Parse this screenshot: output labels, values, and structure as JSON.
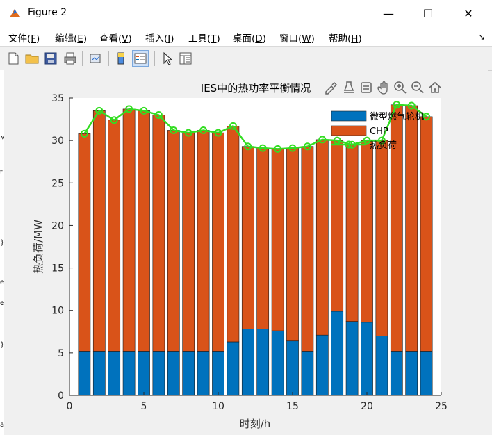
{
  "window": {
    "title": "Figure 2",
    "minimize": "—",
    "maximize": "☐",
    "close": "✕"
  },
  "menu": [
    {
      "label": "文件(",
      "key": "F",
      "tail": ")"
    },
    {
      "label": "编辑(",
      "key": "E",
      "tail": ")"
    },
    {
      "label": "查看(",
      "key": "V",
      "tail": ")"
    },
    {
      "label": "插入(",
      "key": "I",
      "tail": ")"
    },
    {
      "label": "工具(",
      "key": "T",
      "tail": ")"
    },
    {
      "label": "桌面(",
      "key": "D",
      "tail": ")"
    },
    {
      "label": "窗口(",
      "key": "W",
      "tail": ")"
    },
    {
      "label": "帮助(",
      "key": "H",
      "tail": ")"
    }
  ],
  "menu_overflow": "↘",
  "toolbar_icons": [
    "new-figure-icon",
    "open-file-icon",
    "save-icon",
    "print-icon",
    "link-plot-icon",
    "insert-colorbar-icon",
    "insert-legend-icon",
    "pointer-icon",
    "property-inspector-icon"
  ],
  "axes_toolbar_icons": [
    "edit-brush-icon",
    "data-tips-icon",
    "zoom-box-icon",
    "pan-icon",
    "zoom-in-icon",
    "zoom-out-icon",
    "home-icon"
  ],
  "side_strip_text": [
    "M",
    "t",
    "}",
    "e",
    "e",
    "}",
    "a"
  ],
  "colors": {
    "gas_turbine": "#0072bd",
    "chp": "#d95319",
    "heat_load": "#33dd22",
    "window_bg": "#f0f0f0",
    "axes_bg": "#ffffff"
  },
  "chart_data": {
    "type": "bar",
    "stacked": true,
    "title": "IES中的热功率平衡情况",
    "xlabel": "时刻/h",
    "ylabel": "热负荷/MW",
    "xlim": [
      0,
      25
    ],
    "ylim": [
      0,
      35
    ],
    "xticks": [
      0,
      5,
      10,
      15,
      20,
      25
    ],
    "yticks": [
      0,
      5,
      10,
      15,
      20,
      25,
      30,
      35
    ],
    "legend_position": "top-right",
    "x": [
      1,
      2,
      3,
      4,
      5,
      6,
      7,
      8,
      9,
      10,
      11,
      12,
      13,
      14,
      15,
      16,
      17,
      18,
      19,
      20,
      21,
      22,
      23,
      24
    ],
    "series": [
      {
        "name": "微型燃气轮机",
        "kind": "bar",
        "color": "#0072bd",
        "values": [
          5.2,
          5.2,
          5.2,
          5.2,
          5.2,
          5.2,
          5.2,
          5.2,
          5.2,
          5.2,
          6.3,
          7.8,
          7.8,
          7.6,
          6.4,
          5.2,
          7.1,
          9.9,
          8.7,
          8.6,
          7.0,
          5.2,
          5.2,
          5.2
        ]
      },
      {
        "name": "CHP",
        "kind": "bar",
        "color": "#d95319",
        "values": [
          25.6,
          28.3,
          27.2,
          28.5,
          28.3,
          27.8,
          26.0,
          25.7,
          26.0,
          25.7,
          25.4,
          21.5,
          21.3,
          21.4,
          22.7,
          24.1,
          23.0,
          20.1,
          20.8,
          21.4,
          23.0,
          29.0,
          28.9,
          27.6
        ]
      },
      {
        "name": "热负荷",
        "kind": "line",
        "color": "#33dd22",
        "values": [
          30.8,
          33.5,
          32.4,
          33.7,
          33.5,
          33.0,
          31.2,
          30.9,
          31.2,
          30.9,
          31.7,
          29.3,
          29.1,
          29.0,
          29.1,
          29.3,
          30.1,
          30.0,
          29.5,
          30.0,
          30.0,
          34.2,
          34.1,
          32.8
        ]
      }
    ]
  }
}
